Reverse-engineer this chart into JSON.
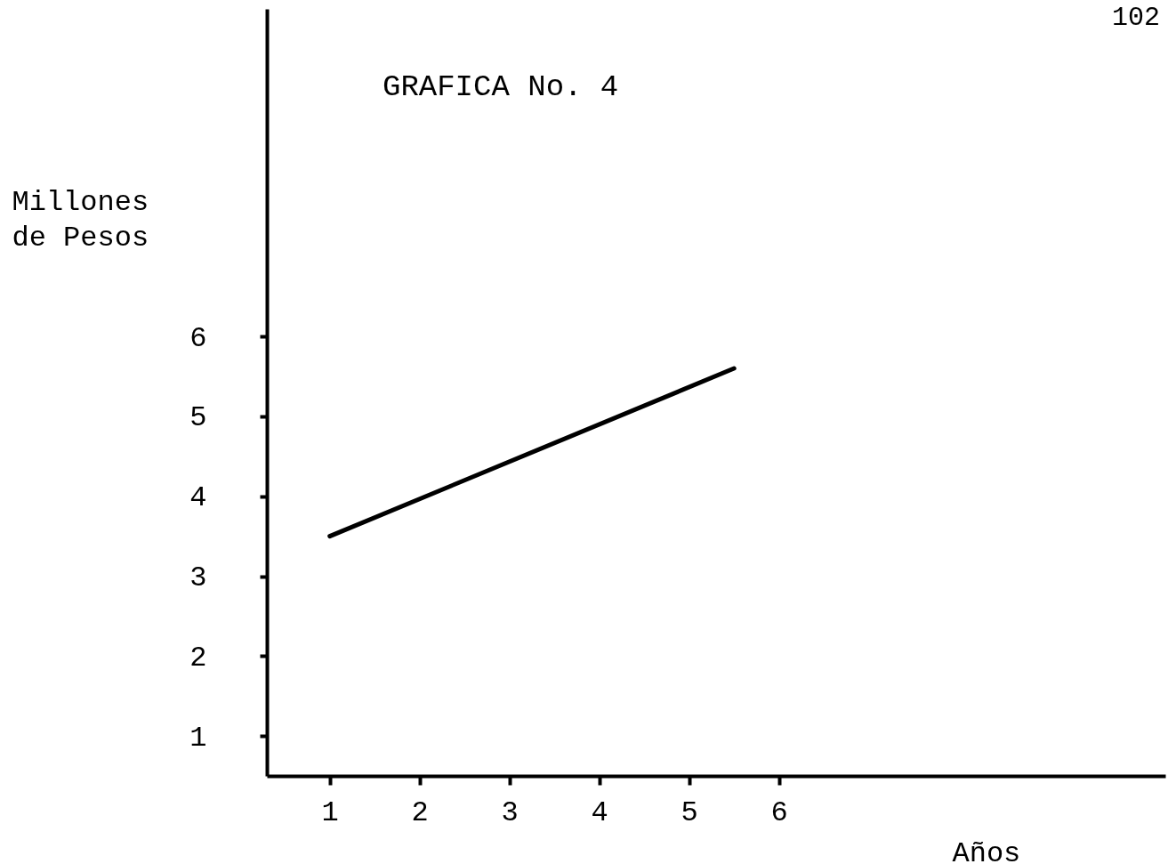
{
  "chart_data": {
    "type": "line",
    "title": "GRAFICA No. 4",
    "xlabel": "Años",
    "ylabel": "Millones de Pesos",
    "annotations": [
      "102"
    ],
    "x": [
      1,
      5.5
    ],
    "series": [
      {
        "color": "#000000",
        "values": [
          3.5,
          5.6
        ]
      }
    ],
    "xlim": [
      0.3,
      10.3
    ],
    "ylim": [
      0.5,
      10.1
    ],
    "xticks": [
      1,
      2,
      3,
      4,
      5,
      6
    ],
    "yticks": [
      1,
      2,
      3,
      4,
      5,
      6
    ],
    "line_style": "solid"
  }
}
